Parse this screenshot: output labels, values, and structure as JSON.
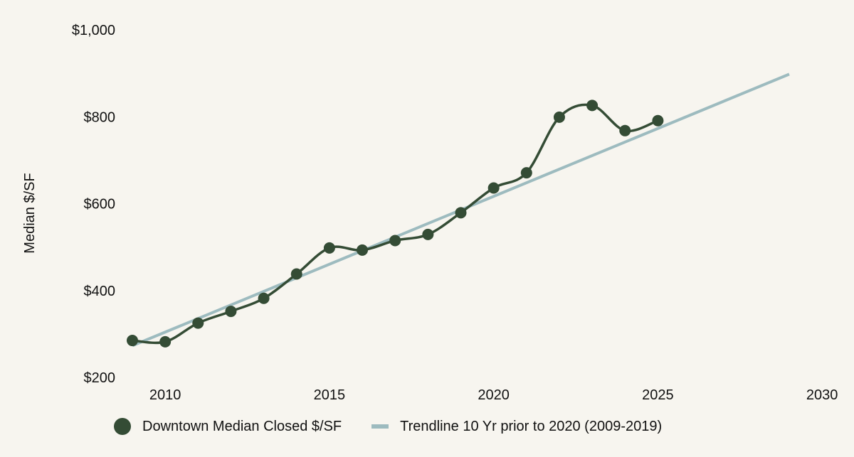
{
  "colors": {
    "series": "#344c35",
    "trend": "#9dbbbf",
    "background": "#f7f5ef"
  },
  "chart_data": {
    "type": "line",
    "title": "",
    "xlabel": "",
    "ylabel": "Median $/SF",
    "xlim": [
      2009,
      2029
    ],
    "ylim": [
      200,
      1000
    ],
    "x_ticks": [
      2010,
      2015,
      2020,
      2025,
      2030
    ],
    "x_tick_labels": [
      "2010",
      "2015",
      "2020",
      "2025",
      "2030"
    ],
    "y_ticks": [
      200,
      400,
      600,
      800,
      1000
    ],
    "y_tick_labels": [
      "$200",
      "$400",
      "$600",
      "$800",
      "$1,000"
    ],
    "grid": false,
    "legend_position": "bottom",
    "series": [
      {
        "name": "Downtown Median Closed $/SF",
        "kind": "line-markers",
        "x": [
          2009,
          2010,
          2011,
          2012,
          2013,
          2014,
          2015,
          2016,
          2017,
          2018,
          2019,
          2020,
          2021,
          2022,
          2023,
          2024,
          2025
        ],
        "values": [
          285,
          282,
          325,
          352,
          382,
          438,
          498,
          493,
          515,
          529,
          579,
          636,
          671,
          799,
          826,
          768,
          791
        ]
      },
      {
        "name": "Trendline 10 Yr prior to 2020 (2009-2019)",
        "kind": "trendline",
        "x": [
          2009,
          2029
        ],
        "values": [
          273,
          898
        ]
      }
    ]
  }
}
